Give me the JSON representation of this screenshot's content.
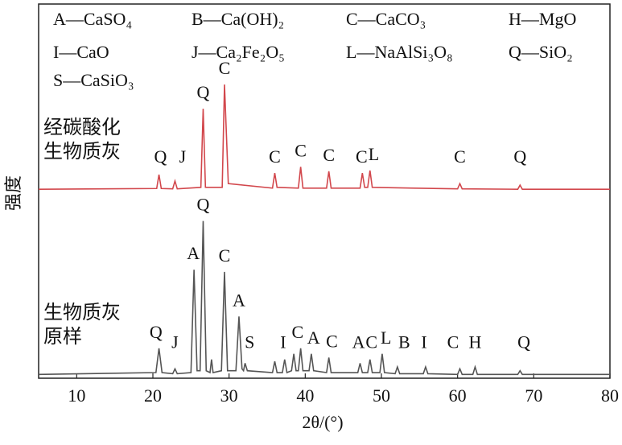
{
  "chart_data": {
    "type": "line",
    "x_label": "2θ/(°)",
    "y_label": "强度",
    "xlim": [
      5,
      80
    ],
    "xticks": [
      10,
      20,
      30,
      40,
      50,
      60,
      70,
      80
    ],
    "ylim": [
      0,
      100
    ],
    "legend_items": [
      "A—CaSO₄",
      "B—Ca(OH)₂",
      "C—CaCO₃",
      "H—MgO",
      "I—CaO",
      "J—Ca₂Fe₂O₅",
      "L—NaAlSi₃O₈",
      "Q—SiO₂",
      "S—CaSiO₃"
    ],
    "series": [
      {
        "name": "经碳酸化生物质灰",
        "color": "#d2474c",
        "x": [
          5,
          20.5,
          20.8,
          21.1,
          22.6,
          22.9,
          23.2,
          26.3,
          26.6,
          26.9,
          29.1,
          29.4,
          29.9,
          35.7,
          36,
          36.3,
          39.1,
          39.4,
          39.7,
          42.8,
          43.1,
          43.4,
          47.2,
          47.5,
          47.8,
          48.2,
          48.5,
          48.8,
          60,
          60.3,
          60.6,
          67.9,
          68.2,
          68.5,
          80
        ],
        "values": [
          50.5,
          50.7,
          54.4,
          50.7,
          50.6,
          52.7,
          50.6,
          51,
          72,
          51,
          51,
          78.5,
          52,
          50.8,
          54.8,
          51,
          50.8,
          56.5,
          50.8,
          50.8,
          55.3,
          50.8,
          50.8,
          54.8,
          51,
          51,
          55.5,
          51,
          50.6,
          52,
          50.6,
          50.5,
          51.6,
          50.5,
          50.5
        ],
        "annotations": [
          {
            "text": "Q",
            "x": 21
          },
          {
            "text": "J",
            "x": 23.9
          },
          {
            "text": "Q",
            "x": 26.6
          },
          {
            "text": "C",
            "x": 29.4
          },
          {
            "text": "C",
            "x": 36
          },
          {
            "text": "C",
            "x": 39.4
          },
          {
            "text": "C",
            "x": 43.1
          },
          {
            "text": "C",
            "x": 47.4
          },
          {
            "text": "L",
            "x": 49
          },
          {
            "text": "C",
            "x": 60.3
          },
          {
            "text": "Q",
            "x": 68.2
          }
        ]
      },
      {
        "name": "生物质灰原样",
        "color": "#555555",
        "x": [
          5,
          20.4,
          20.8,
          21.2,
          22.6,
          22.9,
          23.2,
          25.0,
          25.4,
          25.8,
          26.2,
          26.6,
          27.0,
          27.5,
          27.7,
          27.9,
          29.0,
          29.4,
          29.8,
          30.9,
          31.3,
          31.7,
          31.9,
          32.1,
          32.4,
          35.7,
          36,
          36.3,
          37,
          37.3,
          37.6,
          38.2,
          38.5,
          38.8,
          39.1,
          39.4,
          39.7,
          40.5,
          40.8,
          41.1,
          42.8,
          43.1,
          43.4,
          46.9,
          47.2,
          47.5,
          48.2,
          48.5,
          48.8,
          49.8,
          50.1,
          50.4,
          51.8,
          52.1,
          52.4,
          55.5,
          55.8,
          56.1,
          60,
          60.3,
          60.6,
          62,
          62.3,
          62.6,
          67.9,
          68.2,
          68.5,
          80
        ],
        "values": [
          1,
          1.5,
          8,
          1.5,
          1.2,
          2.5,
          1.2,
          1.5,
          29,
          2,
          2,
          42,
          2,
          1.5,
          5,
          1.5,
          2,
          28.4,
          2,
          2,
          16.5,
          2.5,
          2,
          4,
          2,
          1.5,
          4.5,
          1.5,
          1.5,
          5,
          1.5,
          2,
          6.5,
          2,
          2,
          8,
          2,
          2,
          6.5,
          2,
          1.5,
          5.5,
          1.5,
          1.5,
          4,
          1.5,
          1.5,
          5,
          1.5,
          1.5,
          6.5,
          1.5,
          1.2,
          3,
          1.2,
          1.2,
          3,
          1.2,
          1,
          2.5,
          1,
          1,
          3,
          1,
          1,
          2,
          1,
          1
        ],
        "annotations": [
          {
            "text": "Q",
            "x": 20.4
          },
          {
            "text": "J",
            "x": 22.9
          },
          {
            "text": "A",
            "x": 25.3
          },
          {
            "text": "Q",
            "x": 26.6
          },
          {
            "text": "C",
            "x": 29.4
          },
          {
            "text": "A",
            "x": 31.3
          },
          {
            "text": "S",
            "x": 32.7
          },
          {
            "text": "I",
            "x": 37.1
          },
          {
            "text": "C",
            "x": 39
          },
          {
            "text": "A",
            "x": 41.1
          },
          {
            "text": "C",
            "x": 43.5
          },
          {
            "text": "A",
            "x": 47
          },
          {
            "text": "C",
            "x": 48.7
          },
          {
            "text": "L",
            "x": 50.6
          },
          {
            "text": "B",
            "x": 53
          },
          {
            "text": "I",
            "x": 55.6
          },
          {
            "text": "C",
            "x": 59.4
          },
          {
            "text": "H",
            "x": 62.3
          },
          {
            "text": "Q",
            "x": 68.7
          }
        ]
      }
    ]
  }
}
